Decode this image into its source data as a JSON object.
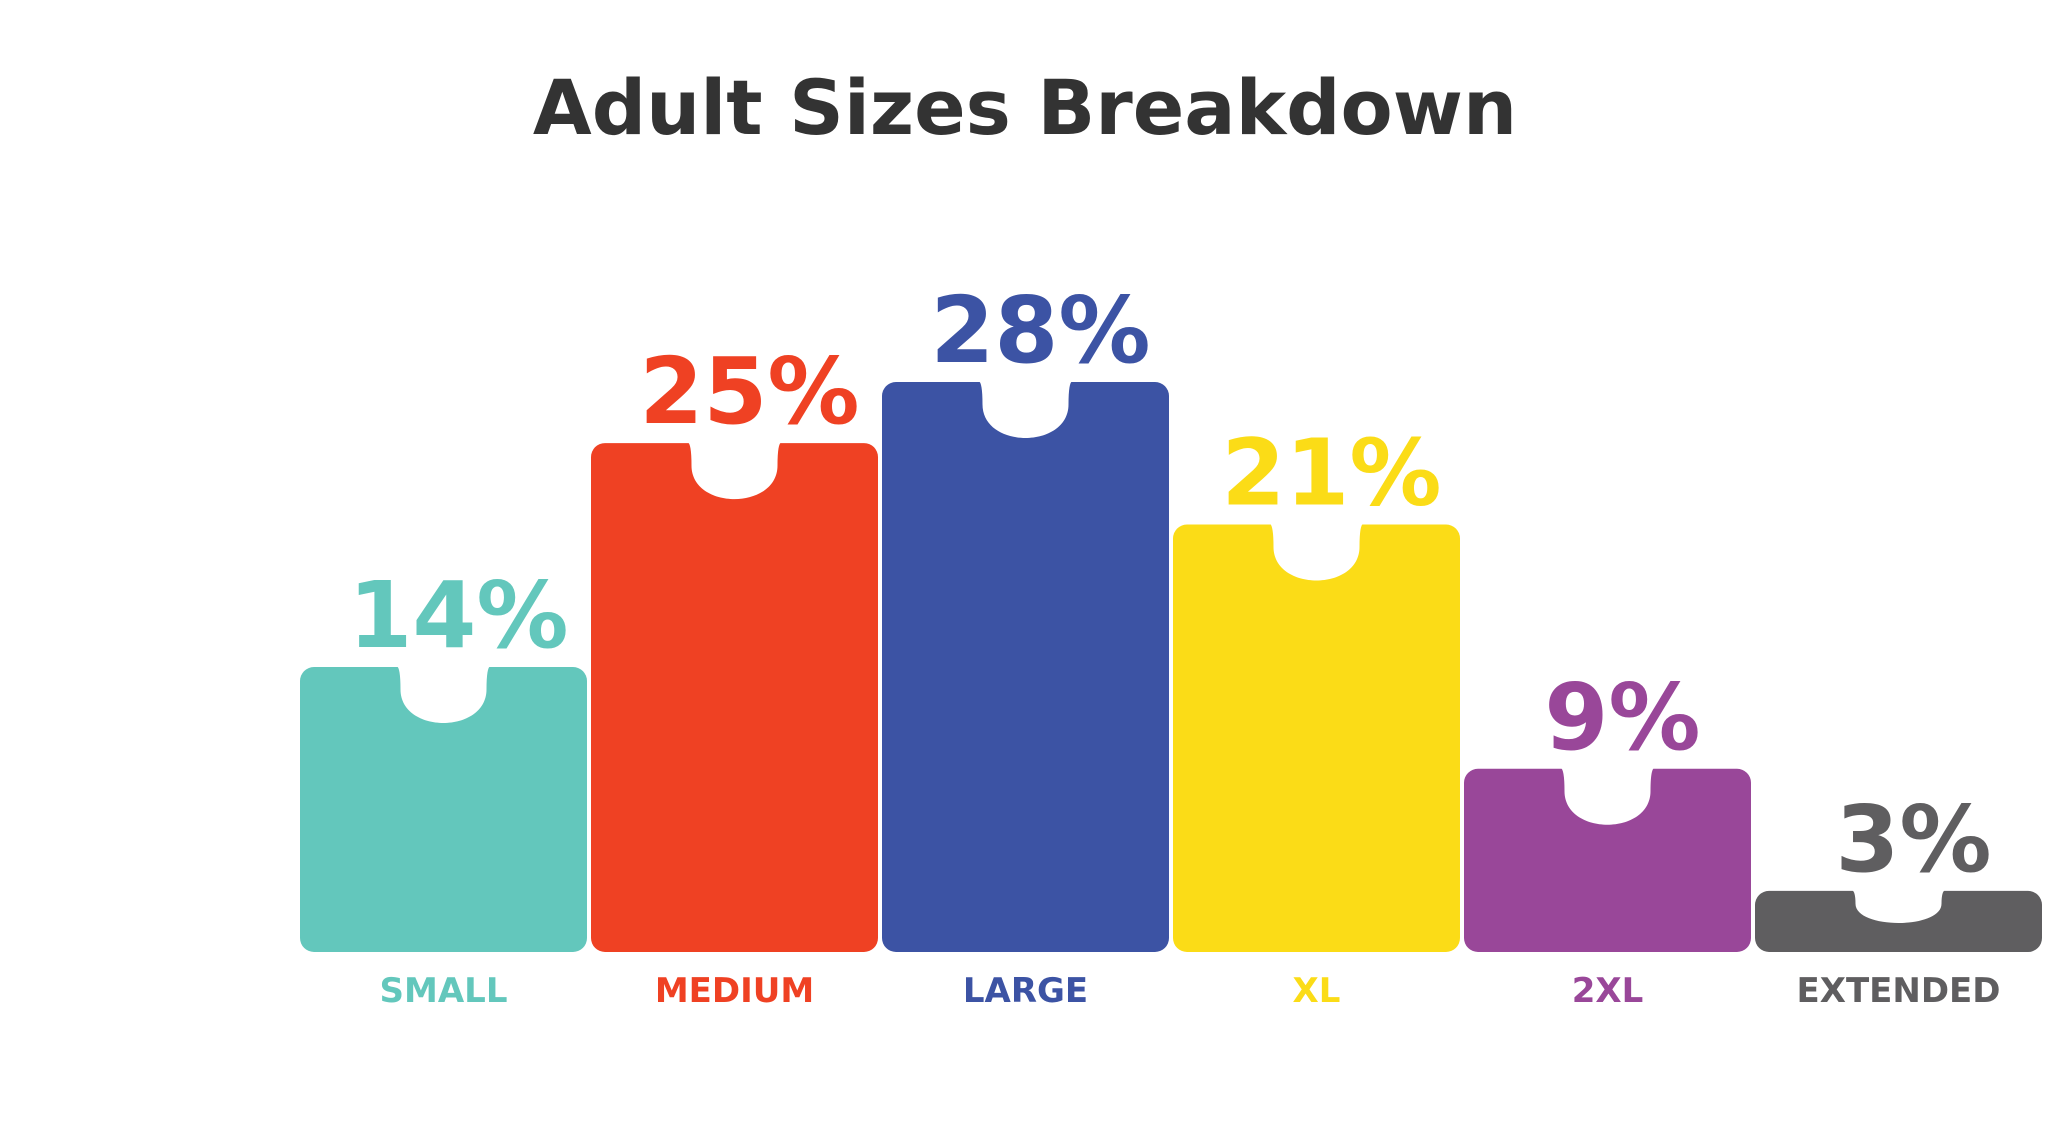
{
  "chart_data": {
    "type": "bar",
    "title": "Adult Sizes Breakdown",
    "categories": [
      "SMALL",
      "MEDIUM",
      "LARGE",
      "XL",
      "2XL",
      "EXTENDED"
    ],
    "values": [
      14,
      25,
      28,
      21,
      9,
      3
    ],
    "value_labels": [
      "14%",
      "25%",
      "28%",
      "21%",
      "9%",
      "3%"
    ],
    "colors": [
      "#63c7bc",
      "#ef4123",
      "#3c53a4",
      "#fbdc17",
      "#994799",
      "#5f5e60"
    ]
  }
}
